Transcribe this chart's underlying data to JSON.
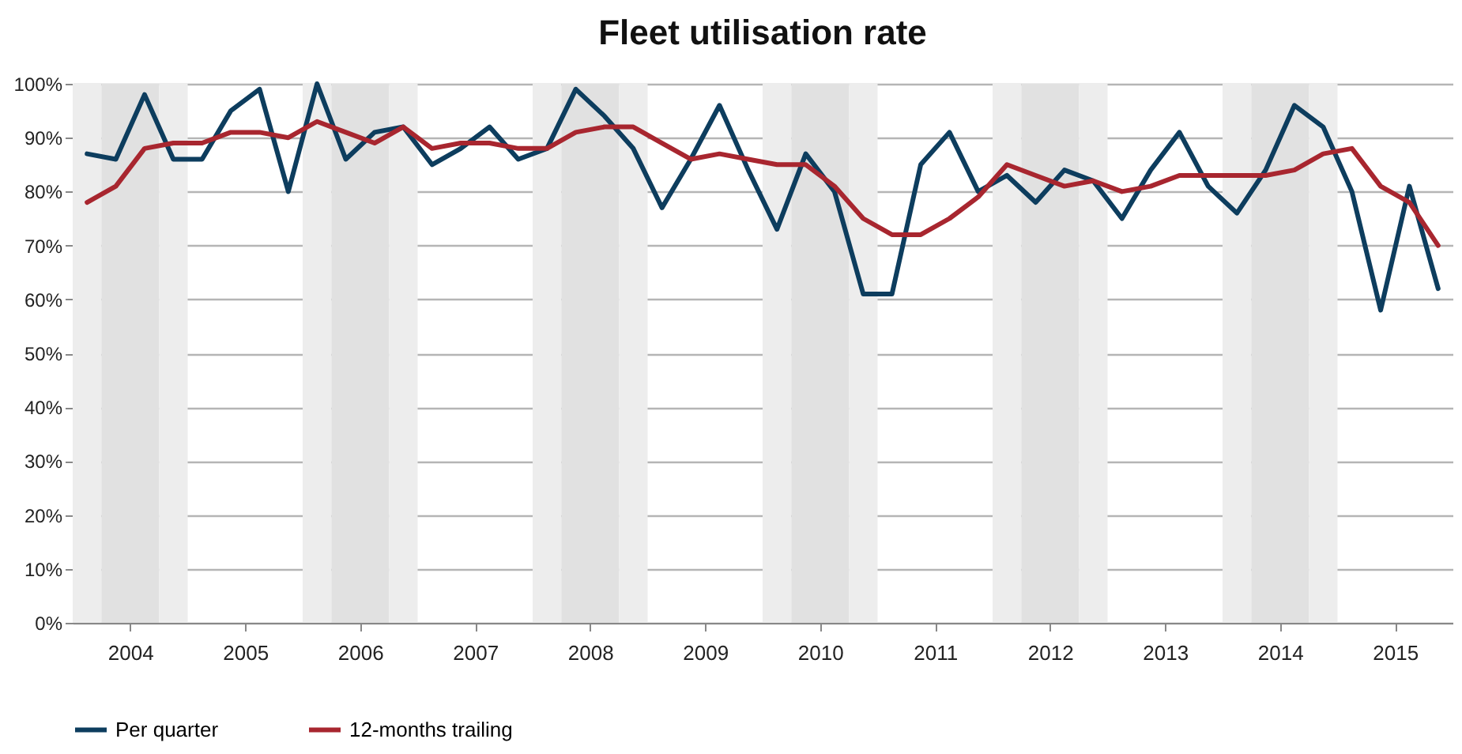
{
  "chart_data": {
    "type": "line",
    "title": "Fleet utilisation rate",
    "x": [
      2003.625,
      2003.875,
      2004.125,
      2004.375,
      2004.625,
      2004.875,
      2005.125,
      2005.375,
      2005.625,
      2005.875,
      2006.125,
      2006.375,
      2006.625,
      2006.875,
      2007.125,
      2007.375,
      2007.625,
      2007.875,
      2008.125,
      2008.375,
      2008.625,
      2008.875,
      2009.125,
      2009.375,
      2009.625,
      2009.875,
      2010.125,
      2010.375,
      2010.625,
      2010.875,
      2011.125,
      2011.375,
      2011.625,
      2011.875,
      2012.125,
      2012.375,
      2012.625,
      2012.875,
      2013.125,
      2013.375,
      2013.625,
      2013.875,
      2014.125,
      2014.375,
      2014.625,
      2014.875,
      2015.125,
      2015.375
    ],
    "series": [
      {
        "name": "Per quarter",
        "color": "#0d3d5e",
        "values": [
          87,
          86,
          98,
          86,
          86,
          95,
          99,
          80,
          100,
          86,
          91,
          92,
          85,
          88,
          92,
          86,
          88,
          99,
          94,
          88,
          77,
          86,
          96,
          84,
          73,
          87,
          80,
          61,
          61,
          85,
          91,
          80,
          83,
          78,
          84,
          82,
          75,
          84,
          91,
          81,
          76,
          84,
          96,
          92,
          80,
          58,
          81,
          62
        ]
      },
      {
        "name": "12-months trailing",
        "color": "#a8262f",
        "values": [
          78,
          81,
          88,
          89,
          89,
          91,
          91,
          90,
          93,
          91,
          89,
          92,
          88,
          89,
          89,
          88,
          88,
          91,
          92,
          92,
          89,
          86,
          87,
          86,
          85,
          85,
          81,
          75,
          72,
          72,
          75,
          79,
          85,
          83,
          81,
          82,
          80,
          81,
          83,
          83,
          83,
          83,
          84,
          87,
          88,
          81,
          78,
          70
        ]
      }
    ],
    "xlim": [
      2003.5,
      2015.5
    ],
    "xticks": [
      2004,
      2005,
      2006,
      2007,
      2008,
      2009,
      2010,
      2011,
      2012,
      2013,
      2014,
      2015
    ],
    "ylim": [
      0,
      100
    ],
    "yticks": [
      {
        "value": 0,
        "label": "0%"
      },
      {
        "value": 10,
        "label": "10%"
      },
      {
        "value": 20,
        "label": "20%"
      },
      {
        "value": 30,
        "label": "30%"
      },
      {
        "value": 40,
        "label": "40%"
      },
      {
        "value": 50,
        "label": "50%"
      },
      {
        "value": 60,
        "label": "60%"
      },
      {
        "value": 70,
        "label": "70%"
      },
      {
        "value": 80,
        "label": "80%"
      },
      {
        "value": 90,
        "label": "90%"
      },
      {
        "value": 100,
        "label": "100%"
      }
    ],
    "bands": [
      {
        "axis": "x",
        "from": 2003.5,
        "to": 2003.75,
        "color": "#ededed"
      },
      {
        "axis": "x",
        "from": 2003.75,
        "to": 2004.25,
        "color": "#e1e1e1"
      },
      {
        "axis": "x",
        "from": 2004.25,
        "to": 2004.5,
        "color": "#ededed"
      },
      {
        "axis": "x",
        "from": 2005.5,
        "to": 2005.75,
        "color": "#ededed"
      },
      {
        "axis": "x",
        "from": 2005.75,
        "to": 2006.25,
        "color": "#e1e1e1"
      },
      {
        "axis": "x",
        "from": 2006.25,
        "to": 2006.5,
        "color": "#ededed"
      },
      {
        "axis": "x",
        "from": 2007.5,
        "to": 2007.75,
        "color": "#ededed"
      },
      {
        "axis": "x",
        "from": 2007.75,
        "to": 2008.25,
        "color": "#e1e1e1"
      },
      {
        "axis": "x",
        "from": 2008.25,
        "to": 2008.5,
        "color": "#ededed"
      },
      {
        "axis": "x",
        "from": 2009.5,
        "to": 2009.75,
        "color": "#ededed"
      },
      {
        "axis": "x",
        "from": 2009.75,
        "to": 2010.25,
        "color": "#e1e1e1"
      },
      {
        "axis": "x",
        "from": 2010.25,
        "to": 2010.5,
        "color": "#ededed"
      },
      {
        "axis": "x",
        "from": 2011.5,
        "to": 2011.75,
        "color": "#ededed"
      },
      {
        "axis": "x",
        "from": 2011.75,
        "to": 2012.25,
        "color": "#e1e1e1"
      },
      {
        "axis": "x",
        "from": 2012.25,
        "to": 2012.5,
        "color": "#ededed"
      },
      {
        "axis": "x",
        "from": 2013.5,
        "to": 2013.75,
        "color": "#ededed"
      },
      {
        "axis": "x",
        "from": 2013.75,
        "to": 2014.25,
        "color": "#e1e1e1"
      },
      {
        "axis": "x",
        "from": 2014.25,
        "to": 2014.5,
        "color": "#ededed"
      }
    ],
    "grid": "y",
    "legend": "bottom"
  }
}
